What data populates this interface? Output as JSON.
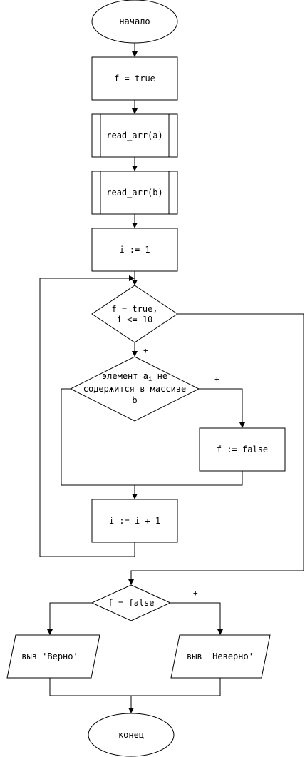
{
  "flowchart": {
    "start": "начало",
    "init_f": "f = true",
    "read_a": "read_arr(a)",
    "read_b": "read_arr(b)",
    "init_i": "i := 1",
    "loop_cond_1": "f = true,",
    "loop_cond_2": "i <= 10",
    "check_1": "элемент a",
    "check_1_sub": "i",
    "check_1_end": " не",
    "check_2": "содержится в массиве",
    "check_3": "b",
    "set_false": "f := false",
    "increment": "i := i + 1",
    "final_cond": "f = false",
    "output_true": "выв 'Верно'",
    "output_false": "выв 'Неверно'",
    "end": "конец",
    "yes_mark_loop": "+",
    "yes_mark_check": "+",
    "yes_mark_final": "+"
  }
}
